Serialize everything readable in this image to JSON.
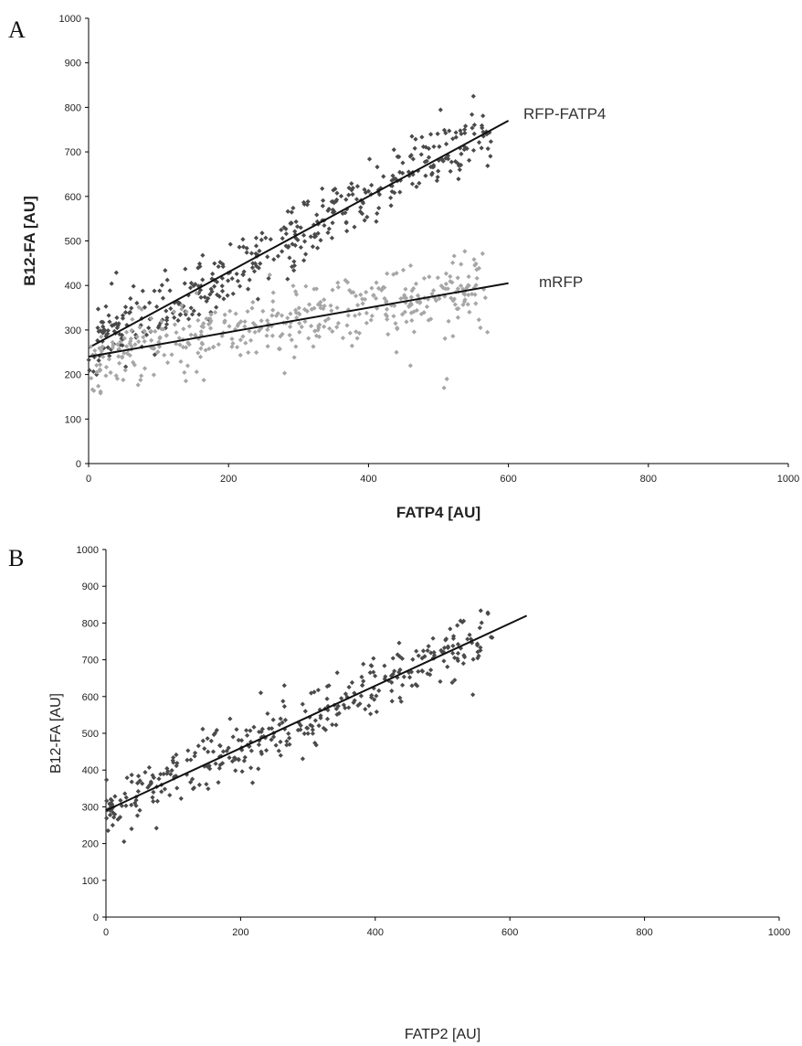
{
  "panels": [
    {
      "label": "A"
    },
    {
      "label": "B"
    }
  ],
  "chart_data": [
    {
      "type": "scatter",
      "xlabel": "FATP4 [AU]",
      "ylabel": "B12-FA [AU]",
      "xlim": [
        0,
        1000
      ],
      "ylim": [
        0,
        1000
      ],
      "xticks": [
        "0",
        "200",
        "400",
        "600",
        "800",
        "1000"
      ],
      "yticks": [
        "0",
        "100",
        "200",
        "300",
        "400",
        "500",
        "600",
        "700",
        "800",
        "900",
        "1000"
      ],
      "grid": false,
      "series": [
        {
          "name": "RFP-FATP4",
          "color": "#4a4a4a",
          "trend": {
            "x": [
              0,
              600
            ],
            "y": [
              260,
              770
            ]
          },
          "points": {
            "count": 420,
            "xrange": [
              0,
              575
            ],
            "noise": 38,
            "seed": 11
          },
          "outliers": [
            [
              550,
              825
            ]
          ]
        },
        {
          "name": "mRFP",
          "color": "#a6a6a6",
          "trend": {
            "x": [
              0,
              600
            ],
            "y": [
              240,
              405
            ]
          },
          "points": {
            "count": 420,
            "xrange": [
              0,
              575
            ],
            "noise": 38,
            "seed": 29
          },
          "outliers": [
            [
              508,
              170
            ],
            [
              512,
              190
            ],
            [
              460,
              220
            ],
            [
              440,
              250
            ],
            [
              570,
              295
            ],
            [
              560,
              305
            ]
          ]
        }
      ]
    },
    {
      "type": "scatter",
      "xlabel": "FATP2 [AU]",
      "ylabel": "B12-FA [AU]",
      "xlim": [
        0,
        1000
      ],
      "ylim": [
        0,
        1000
      ],
      "xticks": [
        "0",
        "200",
        "400",
        "600",
        "800",
        "1000"
      ],
      "yticks": [
        "0",
        "100",
        "200",
        "300",
        "400",
        "500",
        "600",
        "700",
        "800",
        "900",
        "1000"
      ],
      "grid": false,
      "series": [
        {
          "color": "#4a4a4a",
          "trend": {
            "x": [
              0,
              625
            ],
            "y": [
              290,
              820
            ]
          },
          "points": {
            "count": 360,
            "xrange": [
              0,
              575
            ],
            "noise": 40,
            "seed": 47
          },
          "outliers": [
            [
              38,
              240
            ],
            [
              75,
              242
            ],
            [
              10,
              250
            ],
            [
              545,
              605
            ],
            [
              265,
              630
            ],
            [
              230,
              610
            ]
          ]
        }
      ]
    }
  ]
}
